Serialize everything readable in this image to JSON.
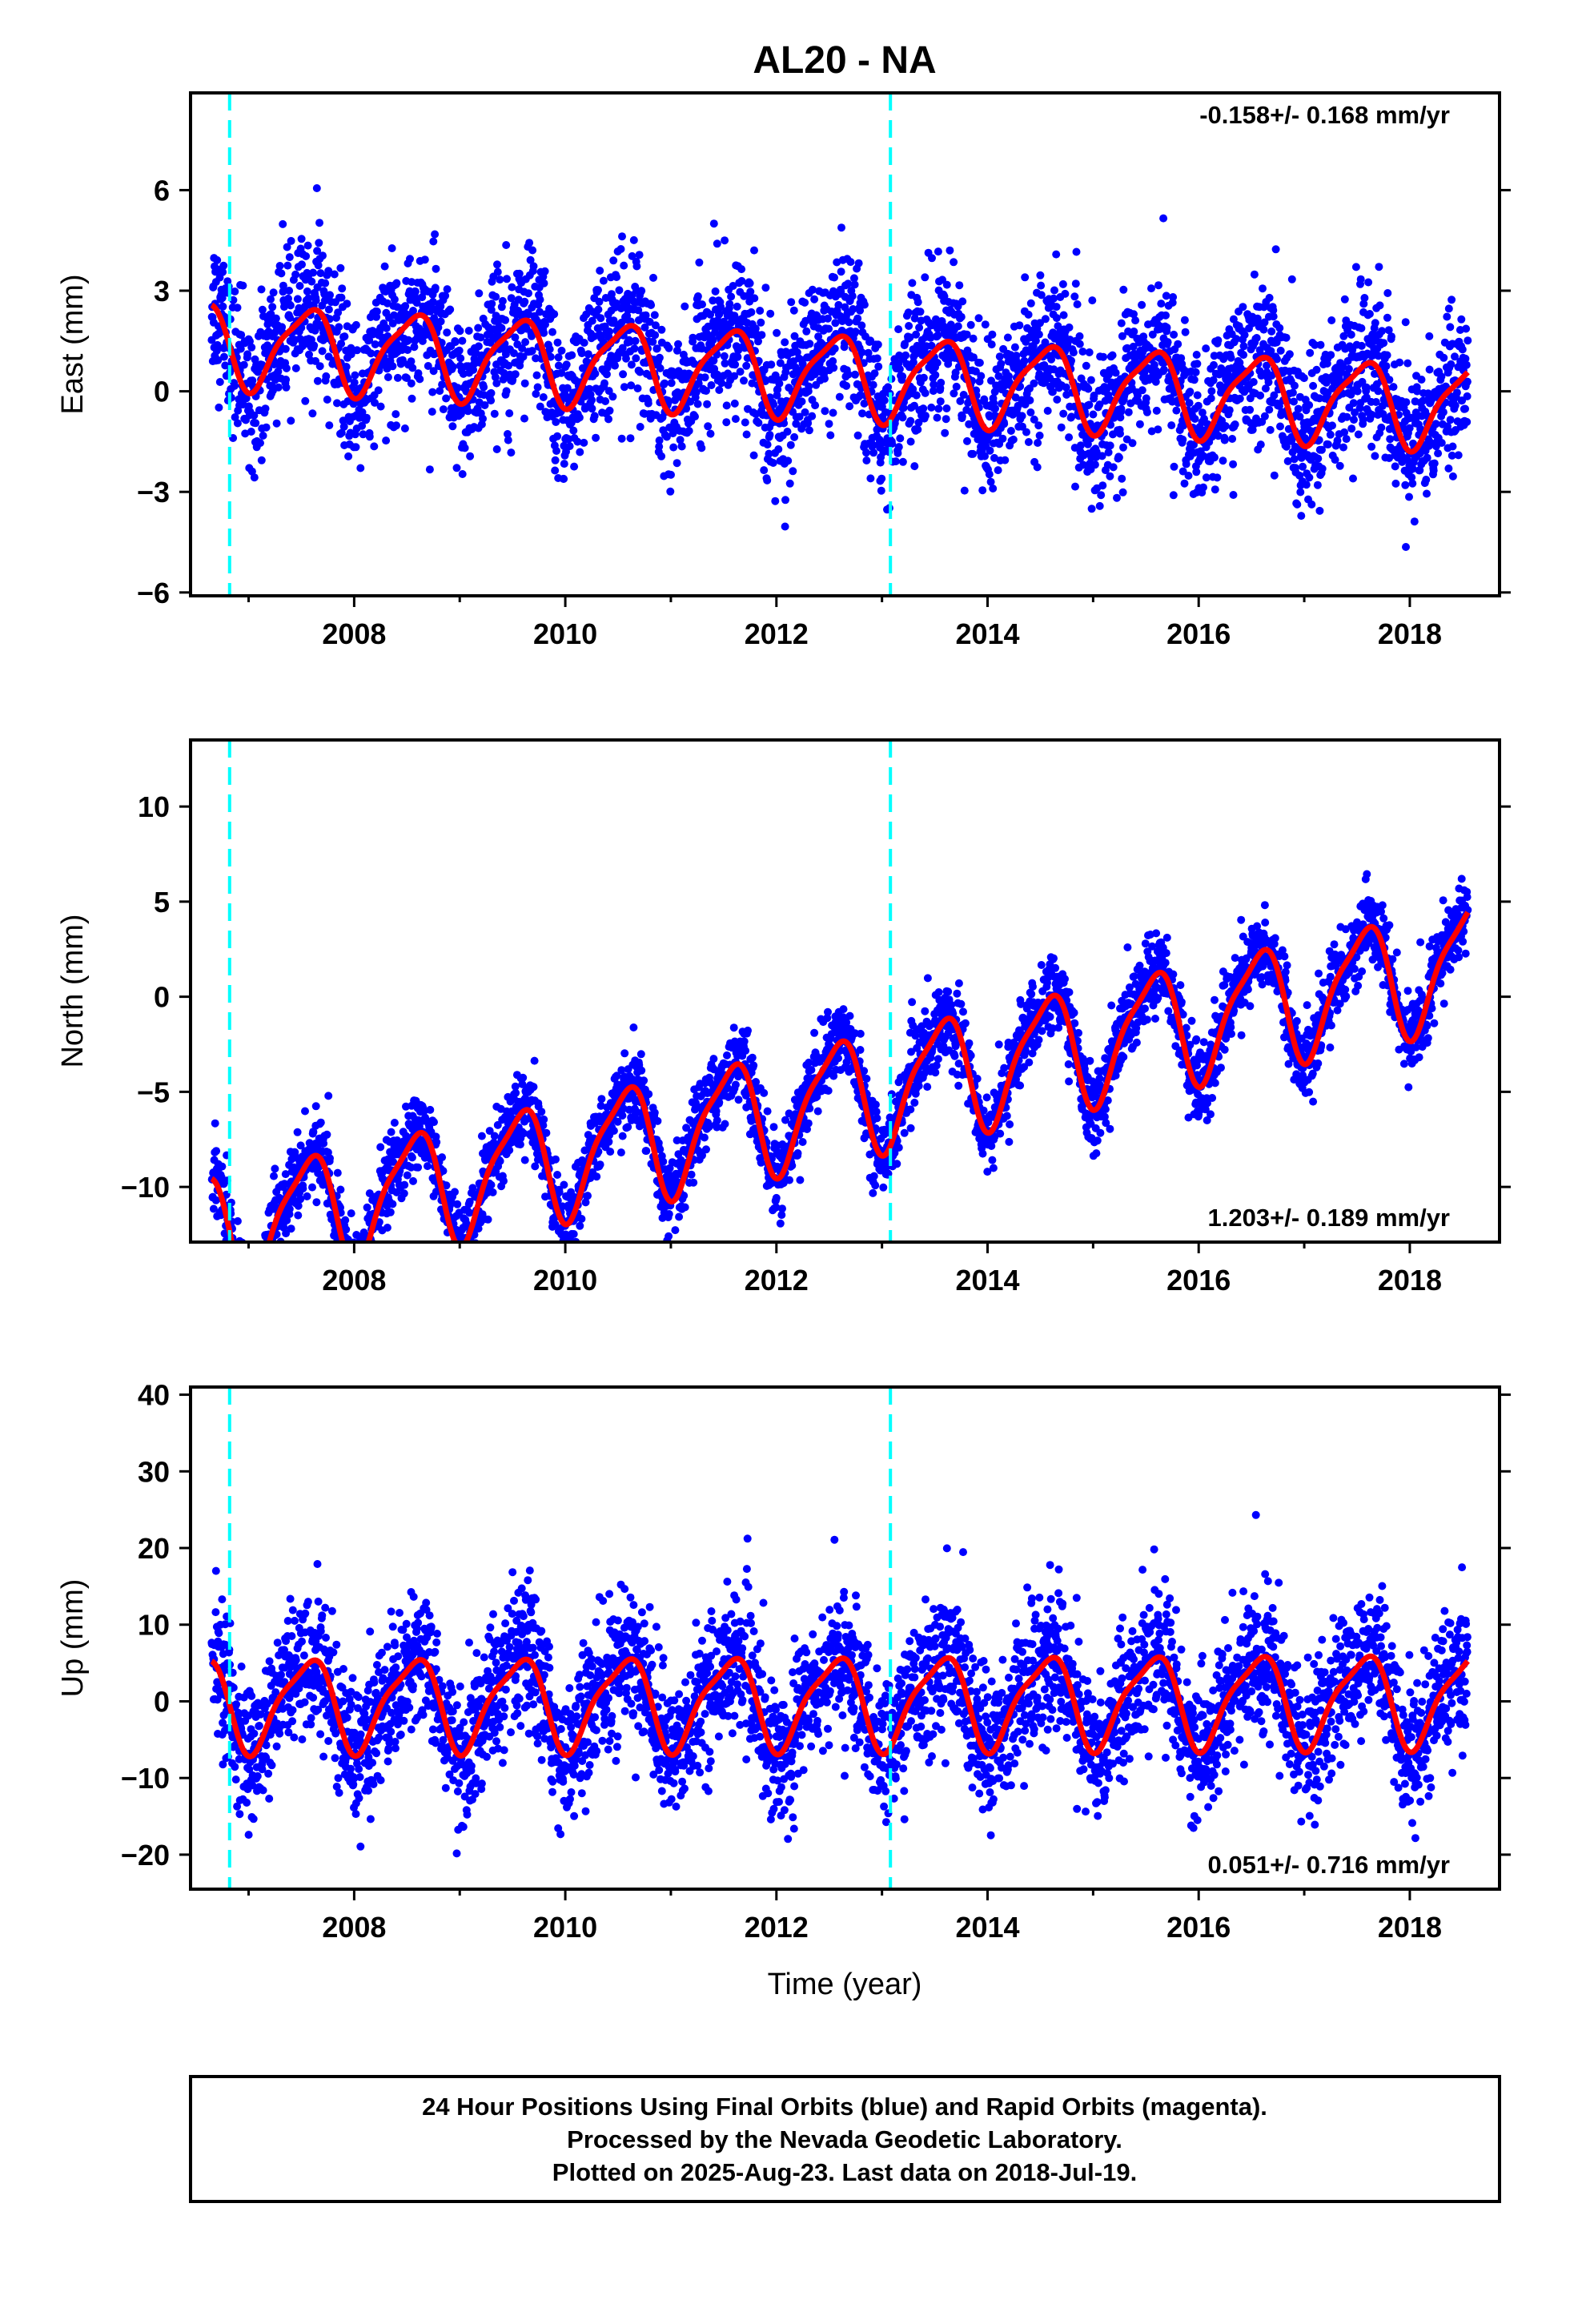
{
  "title": "AL20 - NA",
  "xlabel": "Time (year)",
  "footer": [
    "24 Hour Positions Using Final Orbits (blue) and Rapid Orbits (magenta).",
    "Processed by the Nevada Geodetic Laboratory.",
    "Plotted on 2025-Aug-23. Last data on 2018-Jul-19."
  ],
  "colors": {
    "points": "#0000ff",
    "fit": "#ff0000",
    "events": "#00ffff"
  },
  "chart_data": [
    {
      "type": "scatter",
      "ylabel": "East (mm)",
      "rate_label": "-0.158+/- 0.168 mm/yr",
      "rate_position": "top-right",
      "xlim": [
        2006.45,
        2018.85
      ],
      "ylim": [
        -6.1,
        8.9
      ],
      "xticks": [
        "2008",
        "2010",
        "2012",
        "2014",
        "2016",
        "2018"
      ],
      "yticks": [
        "6",
        "3",
        "0",
        "−3",
        "−6"
      ],
      "ytick_values": [
        6,
        3,
        0,
        -3,
        -6
      ],
      "event_lines": [
        2006.82,
        2013.08
      ],
      "series": [
        {
          "kind": "points",
          "span": [
            2006.65,
            2018.55
          ],
          "trend_mm_per_yr": -0.158,
          "offset": 0.6,
          "annual_amplitude": 1.2,
          "scatter_sd": 1.1
        },
        {
          "kind": "fit",
          "span": [
            2006.65,
            2018.55
          ],
          "trend_mm_per_yr": -0.158,
          "offset": 0.5,
          "annual_amplitude": 1.2
        }
      ]
    },
    {
      "type": "scatter",
      "ylabel": "North (mm)",
      "rate_label": "1.203+/- 0.189 mm/yr",
      "rate_position": "bottom-right",
      "xlim": [
        2006.45,
        2018.85
      ],
      "ylim": [
        -12.9,
        13.5
      ],
      "xticks": [
        "2008",
        "2010",
        "2012",
        "2014",
        "2016",
        "2018"
      ],
      "yticks": [
        "10",
        "5",
        "0",
        "−5",
        "−10"
      ],
      "ytick_values": [
        10,
        5,
        0,
        -5,
        -10
      ],
      "event_lines": [
        2006.82,
        2013.08
      ],
      "series": [
        {
          "kind": "points",
          "span": [
            2006.65,
            2018.55
          ],
          "trend_mm_per_yr": 1.203,
          "offset": -5.3,
          "annual_amplitude": 3.0,
          "scatter_sd": 1.0
        },
        {
          "kind": "fit",
          "span": [
            2006.65,
            2018.55
          ],
          "trend_mm_per_yr": 1.203,
          "offset": -5.4,
          "annual_amplitude": 3.0
        }
      ]
    },
    {
      "type": "scatter",
      "ylabel": "Up (mm)",
      "rate_label": "0.051+/- 0.716 mm/yr",
      "rate_position": "bottom-right",
      "xlim": [
        2006.45,
        2018.85
      ],
      "ylim": [
        -24.5,
        41.0
      ],
      "xticks": [
        "2008",
        "2010",
        "2012",
        "2014",
        "2016",
        "2018"
      ],
      "yticks": [
        "40",
        "30",
        "20",
        "10",
        "0",
        "−10",
        "−20"
      ],
      "ytick_values": [
        40,
        30,
        20,
        10,
        0,
        -10,
        -20
      ],
      "event_lines": [
        2006.82,
        2013.08
      ],
      "series": [
        {
          "kind": "points",
          "span": [
            2006.65,
            2018.55
          ],
          "trend_mm_per_yr": 0.051,
          "offset": 0.0,
          "annual_amplitude": 5.8,
          "scatter_sd": 4.5
        },
        {
          "kind": "fit",
          "span": [
            2006.65,
            2018.55
          ],
          "trend_mm_per_yr": 0.051,
          "offset": 0.0,
          "annual_amplitude": 5.8
        }
      ]
    }
  ]
}
